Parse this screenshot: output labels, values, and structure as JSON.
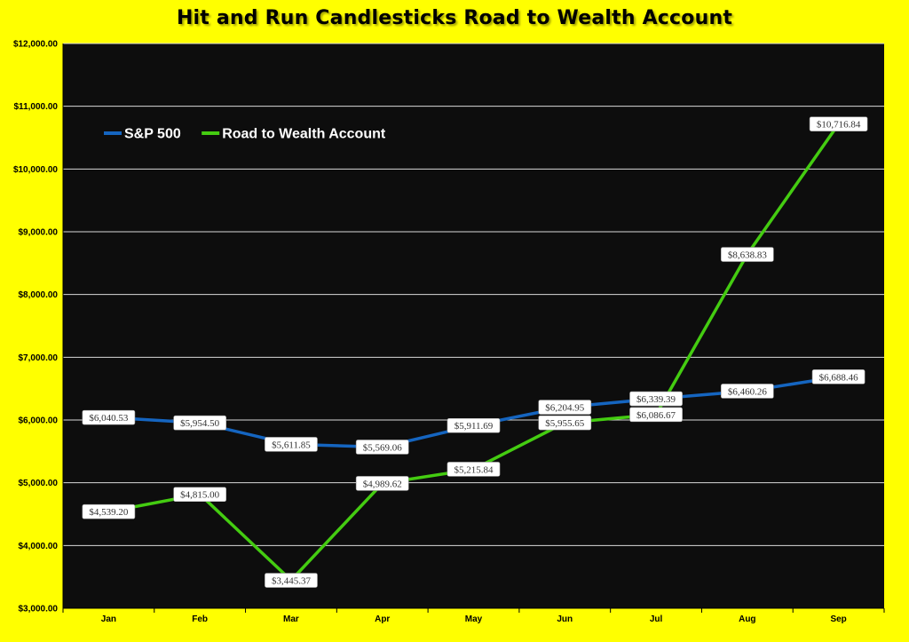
{
  "chart_data": {
    "type": "line",
    "title": "Hit and Run Candlesticks Road to Wealth Account",
    "categories": [
      "Jan",
      "Feb",
      "Mar",
      "Apr",
      "May",
      "Jun",
      "Jul",
      "Aug",
      "Sep"
    ],
    "ylim": [
      3000,
      12000
    ],
    "yticks": [
      3000,
      4000,
      5000,
      6000,
      7000,
      8000,
      9000,
      10000,
      11000,
      12000
    ],
    "ytick_labels": [
      "$3,000.00",
      "$4,000.00",
      "$5,000.00",
      "$6,000.00",
      "$7,000.00",
      "$8,000.00",
      "$9,000.00",
      "$10,000.00",
      "$11,000.00",
      "$12,000.00"
    ],
    "grid": true,
    "legend_position": "top-left",
    "series": [
      {
        "name": "S&P 500",
        "color": "#1565C0",
        "values": [
          6040.53,
          5954.5,
          5611.85,
          5569.06,
          5911.69,
          6204.95,
          6339.39,
          6460.26,
          6688.46
        ],
        "labels": [
          "$6,040.53",
          "$5,954.50",
          "$5,611.85",
          "$5,569.06",
          "$5,911.69",
          "$6,204.95",
          "$6,339.39",
          "$6,460.26",
          "$6,688.46"
        ]
      },
      {
        "name": "Road to Wealth Account",
        "color": "#44CC11",
        "values": [
          4539.2,
          4815.0,
          3445.37,
          4989.62,
          5215.84,
          5955.65,
          6086.67,
          8638.83,
          10716.84
        ],
        "labels": [
          "$4,539.20",
          "$4,815.00",
          "$3,445.37",
          "$4,989.62",
          "$5,215.84",
          "$5,955.65",
          "$6,086.67",
          "$8,638.83",
          "$10,716.84"
        ]
      }
    ]
  },
  "colors": {
    "background": "#FFFF00",
    "plot_area": "#0D0D0D",
    "gridline": "#D9D9D9"
  }
}
